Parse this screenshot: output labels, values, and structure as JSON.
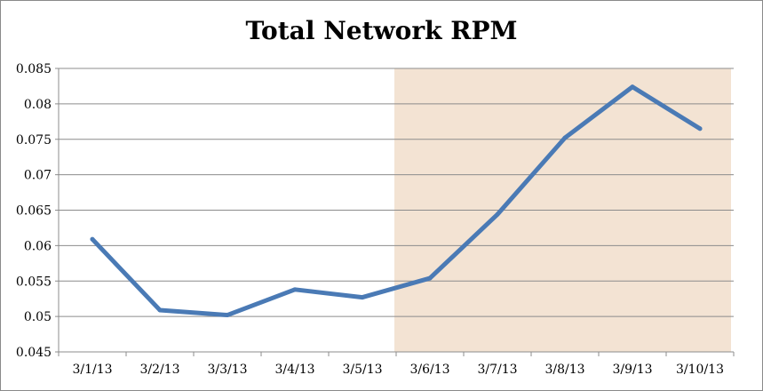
{
  "chart_data": {
    "type": "line",
    "title": "Total Network RPM",
    "xlabel": "",
    "ylabel": "",
    "categories": [
      "3/1/13",
      "3/2/13",
      "3/3/13",
      "3/4/13",
      "3/5/13",
      "3/6/13",
      "3/7/13",
      "3/8/13",
      "3/9/13",
      "3/10/13"
    ],
    "series": [
      {
        "values": [
          0.0609,
          0.0509,
          0.0502,
          0.0538,
          0.0527,
          0.0554,
          0.0644,
          0.0752,
          0.0824,
          0.0765
        ]
      }
    ],
    "ylim": [
      0.045,
      0.085
    ],
    "yticks": [
      "0.045",
      "0.05",
      "0.055",
      "0.06",
      "0.065",
      "0.07",
      "0.075",
      "0.08",
      "0.085"
    ],
    "grid": true,
    "highlight_range": [
      "3/6/13",
      "3/10/13"
    ],
    "colors": {
      "line": "#4a7ab5",
      "highlight": "#f3e3d3",
      "grid": "#8c8c8c"
    }
  }
}
